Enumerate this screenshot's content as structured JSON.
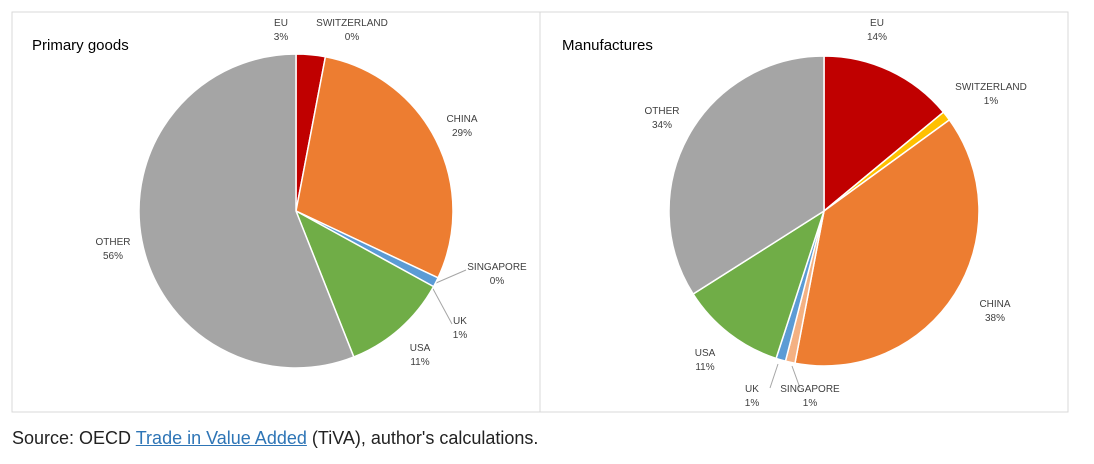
{
  "chart_data": [
    {
      "type": "pie",
      "title": "Primary goods",
      "categories": [
        "EU",
        "SWITZERLAND",
        "CHINA",
        "SINGAPORE",
        "UK",
        "USA",
        "OTHER"
      ],
      "values": [
        3,
        0,
        29,
        0,
        1,
        11,
        56
      ],
      "value_labels": [
        "3%",
        "0%",
        "29%",
        "0%",
        "1%",
        "11%",
        "56%"
      ],
      "colors": [
        "#c00000",
        "#ffc000",
        "#ed7d31",
        "#f4b183",
        "#5b9bd5",
        "#70ad47",
        "#a5a5a5"
      ]
    },
    {
      "type": "pie",
      "title": "Manufactures",
      "categories": [
        "EU",
        "SWITZERLAND",
        "CHINA",
        "SINGAPORE",
        "UK",
        "USA",
        "OTHER"
      ],
      "values": [
        14,
        1,
        38,
        1,
        1,
        11,
        34
      ],
      "value_labels": [
        "14%",
        "1%",
        "38%",
        "1%",
        "1%",
        "11%",
        "34%"
      ],
      "colors": [
        "#c00000",
        "#ffc000",
        "#ed7d31",
        "#f4b183",
        "#5b9bd5",
        "#70ad47",
        "#a5a5a5"
      ]
    }
  ],
  "source": {
    "prefix": "Source: OECD",
    "link": "Trade in Value Added",
    "suffix": "(TiVA), author's calculations."
  }
}
